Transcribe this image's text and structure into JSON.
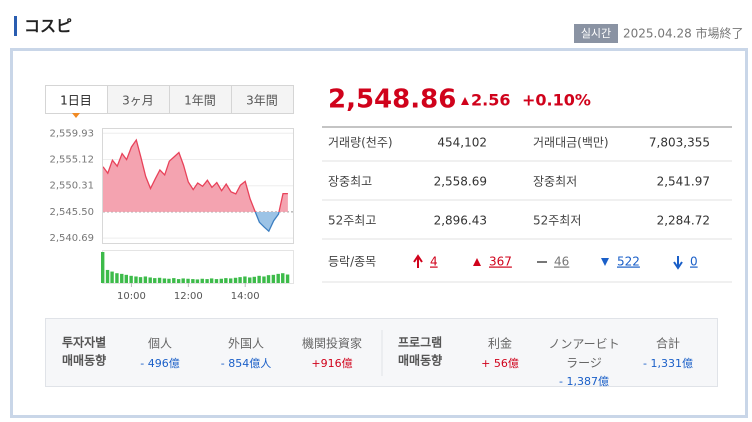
{
  "header": {
    "title": "コスピ",
    "badge": "실시간",
    "date": "2025.04.28 市場終了"
  },
  "tabs": [
    "1日目",
    "3ヶ月",
    "1年間",
    "3年間"
  ],
  "active_tab": 0,
  "quote": {
    "price": "2,548.86",
    "change": "2.56",
    "change_pct": "+0.10%"
  },
  "stats": [
    [
      "거래량(천주)",
      "454,102",
      "거래대금(백만)",
      "7,803,355"
    ],
    [
      "장중최고",
      "2,558.69",
      "장중최저",
      "2,541.97"
    ],
    [
      "52주최고",
      "2,896.43",
      "52주최저",
      "2,284.72"
    ]
  ],
  "updown": {
    "label": "등락/종목",
    "counts": [
      "4",
      "367",
      "46",
      "522",
      "0"
    ]
  },
  "investors": {
    "label": [
      "투자자별",
      "매매동향"
    ],
    "columns": [
      {
        "name": "個人",
        "value": "- 496億"
      },
      {
        "name": "外国人",
        "value": "- 854億人"
      },
      {
        "name": "機関投資家",
        "value": "+916億"
      }
    ]
  },
  "program": {
    "label": [
      "프로그램",
      "매매동향"
    ],
    "columns": [
      {
        "name": "利金",
        "value": "+ 56億"
      },
      {
        "name": "ノンアービトラージ",
        "value": "- 1,387億"
      },
      {
        "name": "合計",
        "value": "- 1,331億"
      }
    ]
  },
  "chart_data": [
    {
      "type": "area",
      "base_value": 2545.5,
      "up_color": "#e8425a",
      "down_color": "#3d7fc1",
      "grid": true,
      "x": [
        9,
        9.17,
        9.33,
        9.5,
        9.67,
        9.83,
        10,
        10.17,
        10.33,
        10.5,
        10.67,
        10.83,
        11,
        11.17,
        11.33,
        11.5,
        11.67,
        11.83,
        12,
        12.17,
        12.33,
        12.5,
        12.67,
        12.83,
        13,
        13.17,
        13.33,
        13.5,
        13.67,
        13.83,
        14,
        14.17,
        14.33,
        14.5,
        14.67,
        14.83,
        15,
        15.17,
        15.33,
        15.5
      ],
      "values": [
        2553.8,
        2552.6,
        2555.0,
        2553.9,
        2556.2,
        2555.1,
        2557.4,
        2558.69,
        2555.6,
        2552.0,
        2549.8,
        2551.5,
        2553.2,
        2552.3,
        2554.8,
        2555.6,
        2556.4,
        2554.1,
        2551.0,
        2549.6,
        2550.8,
        2550.2,
        2551.3,
        2550.0,
        2550.9,
        2549.4,
        2550.6,
        2549.2,
        2548.8,
        2550.4,
        2551.1,
        2547.9,
        2545.8,
        2543.6,
        2542.7,
        2541.97,
        2543.9,
        2545.1,
        2548.86,
        2548.86
      ],
      "xlim": [
        9,
        15.68
      ],
      "ylim": [
        2539.8,
        2560.9
      ],
      "yticks": [
        {
          "value": 2540.69,
          "label": "2,540.69"
        },
        {
          "value": 2545.5,
          "label": "2,545.50"
        },
        {
          "value": 2550.31,
          "label": "2,550.31"
        },
        {
          "value": 2555.12,
          "label": "2,555.12"
        },
        {
          "value": 2559.93,
          "label": "2,559.93"
        }
      ],
      "xticks": [
        {
          "value": 10,
          "label": "10:00"
        },
        {
          "value": 12,
          "label": "12:00"
        },
        {
          "value": 14,
          "label": "14:00"
        }
      ]
    },
    {
      "type": "bar",
      "color": "#3dbb4a",
      "x": [
        9,
        9.17,
        9.33,
        9.5,
        9.67,
        9.83,
        10,
        10.17,
        10.33,
        10.5,
        10.67,
        10.83,
        11,
        11.17,
        11.33,
        11.5,
        11.67,
        11.83,
        12,
        12.17,
        12.33,
        12.5,
        12.67,
        12.83,
        13,
        13.17,
        13.33,
        13.5,
        13.67,
        13.83,
        14,
        14.17,
        14.33,
        14.5,
        14.67,
        14.83,
        15,
        15.17,
        15.33,
        15.5
      ],
      "values": [
        95,
        40,
        35,
        30,
        28,
        25,
        22,
        20,
        18,
        20,
        17,
        15,
        16,
        14,
        13,
        15,
        12,
        14,
        13,
        12,
        11,
        13,
        12,
        14,
        12,
        13,
        15,
        14,
        16,
        18,
        20,
        17,
        19,
        22,
        20,
        24,
        25,
        28,
        30,
        26
      ]
    }
  ]
}
